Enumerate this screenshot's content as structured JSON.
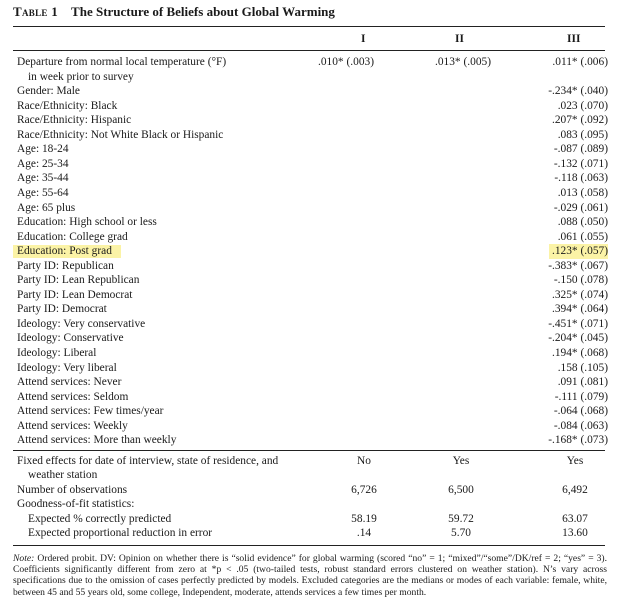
{
  "table_label": "Table 1",
  "title": "The Structure of Beliefs about Global Warming",
  "columns": [
    "I",
    "II",
    "III"
  ],
  "rows": [
    {
      "label": "Departure from normal local temperature (°F)",
      "c1": ".010* (.003)",
      "c2": ".013* (.005)",
      "c3": ".011* (.006)"
    },
    {
      "label": "in week prior to survey",
      "c1": "",
      "c2": "",
      "c3": ""
    },
    {
      "label": "Gender: Male",
      "c1": "",
      "c2": "",
      "c3": "-.234* (.040)"
    },
    {
      "label": "Race/Ethnicity: Black",
      "c1": "",
      "c2": "",
      "c3": ".023 (.070)"
    },
    {
      "label": "Race/Ethnicity: Hispanic",
      "c1": "",
      "c2": "",
      "c3": ".207* (.092)"
    },
    {
      "label": "Race/Ethnicity: Not White Black or Hispanic",
      "c1": "",
      "c2": "",
      "c3": ".083 (.095)"
    },
    {
      "label": "Age: 18-24",
      "c1": "",
      "c2": "",
      "c3": "-.087 (.089)"
    },
    {
      "label": "Age: 25-34",
      "c1": "",
      "c2": "",
      "c3": "-.132 (.071)"
    },
    {
      "label": "Age: 35-44",
      "c1": "",
      "c2": "",
      "c3": "-.118 (.063)"
    },
    {
      "label": "Age: 55-64",
      "c1": "",
      "c2": "",
      "c3": ".013 (.058)"
    },
    {
      "label": "Age: 65 plus",
      "c1": "",
      "c2": "",
      "c3": "-.029 (.061)"
    },
    {
      "label": "Education: High school or less",
      "c1": "",
      "c2": "",
      "c3": ".088 (.050)"
    },
    {
      "label": "Education: College grad",
      "c1": "",
      "c2": "",
      "c3": ".061 (.055)"
    },
    {
      "label": "Education: Post grad",
      "c1": "",
      "c2": "",
      "c3": ".123* (.057)"
    },
    {
      "label": "Party ID: Republican",
      "c1": "",
      "c2": "",
      "c3": "-.383* (.067)"
    },
    {
      "label": "Party ID: Lean Republican",
      "c1": "",
      "c2": "",
      "c3": "-.150 (.078)"
    },
    {
      "label": "Party ID: Lean Democrat",
      "c1": "",
      "c2": "",
      "c3": ".325* (.074)"
    },
    {
      "label": "Party ID: Democrat",
      "c1": "",
      "c2": "",
      "c3": ".394* (.064)"
    },
    {
      "label": "Ideology: Very conservative",
      "c1": "",
      "c2": "",
      "c3": "-.451* (.071)"
    },
    {
      "label": "Ideology: Conservative",
      "c1": "",
      "c2": "",
      "c3": "-.204* (.045)"
    },
    {
      "label": "Ideology: Liberal",
      "c1": "",
      "c2": "",
      "c3": ".194* (.068)"
    },
    {
      "label": "Ideology: Very liberal",
      "c1": "",
      "c2": "",
      "c3": ".158 (.105)"
    },
    {
      "label": "Attend services: Never",
      "c1": "",
      "c2": "",
      "c3": ".091 (.081)"
    },
    {
      "label": "Attend services: Seldom",
      "c1": "",
      "c2": "",
      "c3": "-.111 (.079)"
    },
    {
      "label": "Attend services: Few times/year",
      "c1": "",
      "c2": "",
      "c3": "-.064 (.068)"
    },
    {
      "label": "Attend services: Weekly",
      "c1": "",
      "c2": "",
      "c3": "-.084 (.063)"
    },
    {
      "label": "Attend services: More than weekly",
      "c1": "",
      "c2": "",
      "c3": "-.168* (.073)"
    }
  ],
  "highlight_color": "#fbf3a6",
  "stats_rows": [
    {
      "label": "Fixed effects for date of interview, state of residence, and",
      "c1": "No",
      "c2": "Yes",
      "c3": "Yes"
    },
    {
      "label": "weather station",
      "c1": "",
      "c2": "",
      "c3": ""
    },
    {
      "label": "Number of observations",
      "c1": "6,726",
      "c2": "6,500",
      "c3": "6,492"
    },
    {
      "label": "Goodness-of-fit statistics:",
      "c1": "",
      "c2": "",
      "c3": ""
    },
    {
      "label": "Expected % correctly predicted",
      "c1": "58.19",
      "c2": "59.72",
      "c3": "63.07"
    },
    {
      "label": "Expected proportional reduction in error",
      "c1": ".14",
      "c2": "5.70",
      "c3": "13.60"
    }
  ],
  "note_label": "Note:",
  "note_text": "Ordered probit. DV: Opinion on whether there is “solid evidence” for global warming (scored “no” = 1; “mixed”/“some”/DK/ref = 2; “yes” = 3). Coefficients significantly different from zero at *p < .05 (two-tailed tests, robust standard errors clustered on weather station). N’s vary across specifications due to the omission of cases perfectly predicted by models. Excluded categories are the medians or modes of each variable: female, white, between 45 and 55 years old, some college, Independent, moderate, attends services a few times per month."
}
